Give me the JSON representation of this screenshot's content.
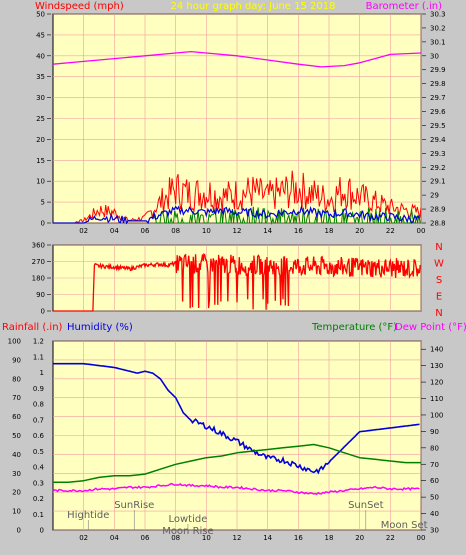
{
  "colors": {
    "background": "#c8c8c8",
    "plot_bg": "#ffffc0",
    "grid": "#f0a0a0",
    "red": "#ff0000",
    "blue": "#0000dd",
    "green": "#008000",
    "magenta": "#ff00ff",
    "yellow": "#ffff00"
  },
  "header": {
    "left_label": "Windspeed (mph)",
    "center_label": "24 hour graph day:  June 15 2018",
    "right_label": "Barometer (.in)"
  },
  "chart_data": [
    {
      "type": "line",
      "name": "wind-barometer",
      "x_ticks": [
        "02",
        "04",
        "06",
        "08",
        "10",
        "12",
        "14",
        "16",
        "18",
        "20",
        "22",
        "00"
      ],
      "ylim_left": [
        0,
        50
      ],
      "y_ticks_left": [
        "0",
        "5",
        "10",
        "15",
        "20",
        "25",
        "30",
        "35",
        "40",
        "45",
        "50"
      ],
      "ylim_right": [
        28.8,
        30.3
      ],
      "y_ticks_right": [
        "28.8",
        "28.9",
        "29",
        "29.1",
        "29.2",
        "29.3",
        "29.4",
        "29.5",
        "29.6",
        "29.7",
        "29.8",
        "29.9",
        "30",
        "30.1",
        "30.2",
        "30.3"
      ],
      "grid": true,
      "barometer": {
        "x": [
          0,
          2,
          4,
          6,
          8,
          9,
          10,
          12,
          14,
          16,
          17.5,
          19,
          20,
          21,
          22,
          24
        ],
        "y": [
          29.94,
          29.96,
          29.98,
          30.0,
          30.02,
          30.03,
          30.02,
          30.0,
          29.97,
          29.94,
          29.92,
          29.93,
          29.95,
          29.98,
          30.01,
          30.02
        ]
      },
      "wind_gust_envelope": {
        "x": [
          0,
          1,
          2,
          2.5,
          3,
          4,
          4.5,
          5,
          6,
          7,
          8,
          9,
          10,
          11,
          12,
          13,
          14,
          15,
          16,
          17,
          18,
          19,
          20,
          21,
          22,
          23,
          24
        ],
        "y": [
          0,
          0,
          1,
          3,
          5,
          4,
          2,
          1,
          2,
          8,
          13,
          11,
          12,
          10,
          11,
          12,
          10,
          12,
          13,
          11,
          9,
          13,
          10,
          8,
          6,
          5,
          4
        ]
      },
      "wind_avg": {
        "x": [
          0,
          2,
          3,
          4,
          5,
          6,
          7,
          8,
          9,
          10,
          11,
          12,
          13,
          14,
          15,
          16,
          17,
          18,
          19,
          20,
          21,
          22,
          23,
          24
        ],
        "y": [
          0,
          0,
          1.5,
          1,
          0.5,
          0.5,
          2,
          3,
          3,
          2.5,
          3,
          2.5,
          2.5,
          2,
          2.5,
          3,
          2.5,
          2,
          2.5,
          2,
          1.5,
          1.5,
          1,
          1
        ]
      }
    },
    {
      "type": "line",
      "name": "wind-direction",
      "x_ticks": [
        "02",
        "04",
        "06",
        "08",
        "10",
        "12",
        "14",
        "16",
        "18",
        "20",
        "22",
        "00"
      ],
      "ylim": [
        0,
        360
      ],
      "y_ticks": [
        "0",
        "90",
        "180",
        "270",
        "360"
      ],
      "compass_labels": [
        "N",
        "W",
        "S",
        "E",
        "N"
      ],
      "direction": {
        "x": [
          0,
          2.6,
          2.7,
          3,
          4,
          5,
          6,
          7,
          7.5,
          8,
          24
        ],
        "y": [
          0,
          0,
          250,
          245,
          240,
          230,
          250,
          255,
          250,
          260,
          230
        ]
      }
    },
    {
      "type": "line",
      "name": "rain-humidity-temp",
      "x_ticks": [
        "02",
        "04",
        "06",
        "08",
        "10",
        "12",
        "14",
        "16",
        "18",
        "20",
        "22",
        "00"
      ],
      "ylim_rain": [
        0,
        1.2
      ],
      "y_ticks_rain": [
        "0",
        "0.1",
        "0.2",
        "0.3",
        "0.4",
        "0.5",
        "0.6",
        "0.7",
        "0.8",
        "0.9",
        "1",
        "1.1",
        "1.2"
      ],
      "ylim_humidity": [
        0,
        100
      ],
      "y_ticks_humidity": [
        "0",
        "10",
        "20",
        "30",
        "40",
        "50",
        "60",
        "70",
        "80",
        "90",
        "100"
      ],
      "ylim_temp": [
        30,
        145
      ],
      "y_ticks_temp": [
        "30",
        "40",
        "50",
        "60",
        "70",
        "80",
        "90",
        "100",
        "110",
        "120",
        "130",
        "140"
      ],
      "left_label_rain": "Rainfall (.in)",
      "left_label_humidity": "Humidity (%)",
      "right_label_temp": "Temperature (°F)",
      "right_label_dew": "Dew Point (°F)",
      "humidity": {
        "x": [
          0,
          1,
          2,
          3,
          4,
          5,
          5.5,
          6,
          6.5,
          7,
          7.5,
          8,
          8.5,
          9,
          10,
          11,
          12,
          13,
          14,
          15,
          16,
          17,
          17.5,
          18,
          18.5,
          19,
          19.5,
          20,
          21,
          22,
          23,
          24
        ],
        "y": [
          88,
          88,
          88,
          87,
          86,
          84,
          83,
          84,
          83,
          80,
          74,
          70,
          62,
          58,
          55,
          51,
          47,
          42,
          38,
          37,
          34,
          31,
          32,
          36,
          40,
          44,
          48,
          52,
          53,
          54,
          55,
          56
        ]
      },
      "temperature": {
        "x": [
          0,
          1,
          2,
          3,
          4,
          5,
          6,
          7,
          8,
          9,
          10,
          11,
          12,
          13,
          14,
          15,
          16,
          17,
          18,
          19,
          20,
          21,
          22,
          23,
          24
        ],
        "y": [
          59,
          59,
          60,
          62,
          63,
          63,
          64,
          67,
          70,
          72,
          74,
          75,
          77,
          78,
          79,
          80,
          81,
          82,
          80,
          77,
          74,
          73,
          72,
          71,
          71
        ]
      },
      "dew_point": {
        "x": [
          0,
          1,
          2,
          3,
          4,
          5,
          6,
          7,
          8,
          9,
          10,
          11,
          12,
          13,
          14,
          15,
          16,
          17,
          18,
          19,
          20,
          21,
          22,
          23,
          24
        ],
        "y": [
          54,
          54,
          54,
          55,
          55,
          56,
          56,
          57,
          58,
          57,
          57,
          56,
          56,
          55,
          54,
          54,
          53,
          52,
          53,
          54,
          55,
          56,
          55,
          55,
          55
        ]
      },
      "events": [
        {
          "label": "Hightide",
          "x": 2.3
        },
        {
          "label": "SunRise",
          "x": 5.3
        },
        {
          "label": "Lowtide",
          "x": 8.8
        },
        {
          "label": "Moon Rise",
          "x": 8.8
        },
        {
          "label": "SunSet",
          "x": 20.4
        },
        {
          "label": "Moon Set",
          "x": 22.9
        }
      ]
    }
  ]
}
